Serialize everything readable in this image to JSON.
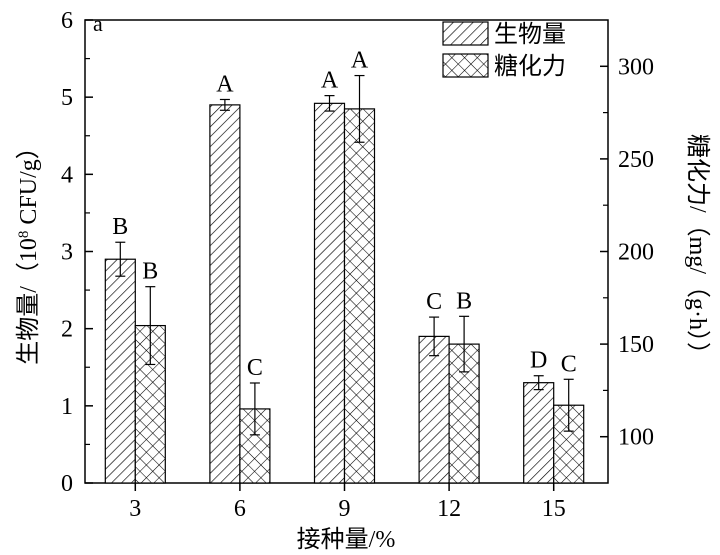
{
  "chart_data": {
    "type": "bar",
    "panel_label": "a",
    "categories": [
      "3",
      "6",
      "9",
      "12",
      "15"
    ],
    "xlabel": "接种量/%",
    "ylabel_left_pre": "生物量/（10",
    "ylabel_left_sup": "8",
    "ylabel_left_post": " CFU/g）",
    "ylabel_right": "糖化力/（mg/（g·h））",
    "ylim_left": [
      0,
      6
    ],
    "ylim_right": [
      75,
      325
    ],
    "yticks_left": [
      "0",
      "1",
      "2",
      "3",
      "4",
      "5",
      "6"
    ],
    "yticks_right": [
      "100",
      "150",
      "200",
      "250",
      "300"
    ],
    "legend_position": "top-right",
    "grid": false,
    "series": [
      {
        "name": "生物量",
        "axis": "left",
        "pattern": "diagonal-hatch",
        "values": [
          2.9,
          4.9,
          4.92,
          1.9,
          1.3
        ],
        "errors": [
          0.22,
          0.07,
          0.1,
          0.25,
          0.09
        ],
        "labels": [
          "B",
          "A",
          "A",
          "C",
          "D"
        ]
      },
      {
        "name": "糖化力",
        "axis": "right",
        "pattern": "cross-hatch",
        "values": [
          160,
          115,
          277,
          150,
          117
        ],
        "errors": [
          21,
          14,
          18,
          15,
          14
        ],
        "labels": [
          "B",
          "C",
          "A",
          "B",
          "C"
        ]
      }
    ]
  }
}
